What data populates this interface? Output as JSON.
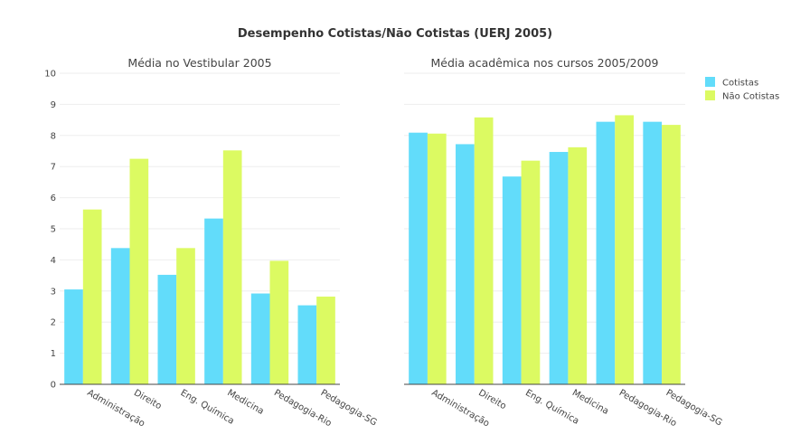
{
  "chart_data": {
    "type": "bar",
    "title": "Desempenho Cotistas/Não Cotistas (UERJ 2005)",
    "categories": [
      "Administração",
      "Direito",
      "Eng. Química",
      "Medicina",
      "Pedagogia-Rio",
      "Pedagogia-SG"
    ],
    "ylim": [
      0,
      10
    ],
    "yticks": [
      "0",
      "1",
      "2",
      "3",
      "4",
      "5",
      "6",
      "7",
      "8",
      "9",
      "10"
    ],
    "grid": true,
    "legend_position": "top-right",
    "colors": {
      "Cotistas": "#62dcfa",
      "Não Cotistas": "#dcfa62"
    },
    "legend": [
      "Cotistas",
      "Não Cotistas"
    ],
    "subplots": [
      {
        "subtitle": "Média no Vestibular 2005",
        "series": [
          {
            "name": "Cotistas",
            "values": [
              3.05,
              4.38,
              3.52,
              5.33,
              2.92,
              2.54
            ]
          },
          {
            "name": "Não Cotistas",
            "values": [
              5.62,
              7.25,
              4.38,
              7.52,
              3.97,
              2.82
            ]
          }
        ]
      },
      {
        "subtitle": "Média acadêmica nos cursos 2005/2009",
        "series": [
          {
            "name": "Cotistas",
            "values": [
              8.09,
              7.72,
              6.68,
              7.47,
              8.44,
              8.44
            ]
          },
          {
            "name": "Não Cotistas",
            "values": [
              8.06,
              8.58,
              7.19,
              7.62,
              8.65,
              8.34
            ]
          }
        ]
      }
    ]
  }
}
